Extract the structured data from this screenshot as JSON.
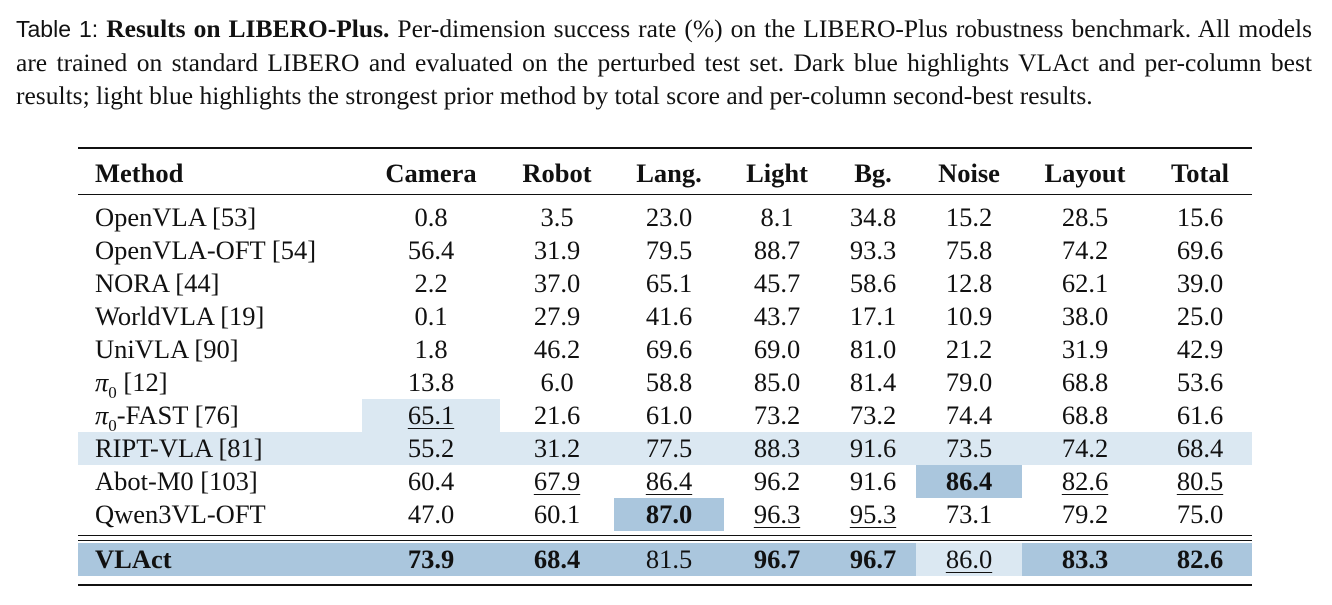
{
  "caption": {
    "prefix": "Table 1:",
    "title": "Results on LIBERO-Plus.",
    "text": "Per-dimension success rate (%) on the LIBERO-Plus robustness benchmark. All models are trained on standard LIBERO and evaluated on the perturbed test set. Dark blue highlights VLAct and per-column best results; light blue highlights the strongest prior method by total score and per-column second-best results."
  },
  "table": {
    "headers": [
      "Method",
      "Camera",
      "Robot",
      "Lang.",
      "Light",
      "Bg.",
      "Noise",
      "Layout",
      "Total"
    ],
    "rows": [
      {
        "method": "OpenVLA [53]",
        "values": [
          "0.8",
          "3.5",
          "23.0",
          "8.1",
          "34.8",
          "15.2",
          "28.5",
          "15.6"
        ]
      },
      {
        "method": "OpenVLA-OFT [54]",
        "values": [
          "56.4",
          "31.9",
          "79.5",
          "88.7",
          "93.3",
          "75.8",
          "74.2",
          "69.6"
        ]
      },
      {
        "method": "NORA [44]",
        "values": [
          "2.2",
          "37.0",
          "65.1",
          "45.7",
          "58.6",
          "12.8",
          "62.1",
          "39.0"
        ]
      },
      {
        "method": "WorldVLA [19]",
        "values": [
          "0.1",
          "27.9",
          "41.6",
          "43.7",
          "17.1",
          "10.9",
          "38.0",
          "25.0"
        ]
      },
      {
        "method": "UniVLA [90]",
        "values": [
          "1.8",
          "46.2",
          "69.6",
          "69.0",
          "81.0",
          "21.2",
          "31.9",
          "42.9"
        ]
      },
      {
        "method": "π0 [12]",
        "values": [
          "13.8",
          "6.0",
          "58.8",
          "85.0",
          "81.4",
          "79.0",
          "68.8",
          "53.6"
        ]
      },
      {
        "method": "π0-FAST [76]",
        "values": [
          "65.1",
          "21.6",
          "61.0",
          "73.2",
          "73.2",
          "74.4",
          "68.8",
          "61.6"
        ]
      },
      {
        "method": "RIPT-VLA [81]",
        "values": [
          "55.2",
          "31.2",
          "77.5",
          "88.3",
          "91.6",
          "73.5",
          "74.2",
          "68.4"
        ]
      },
      {
        "method": "Abot-M0 [103]",
        "values": [
          "60.4",
          "67.9",
          "86.4",
          "96.2",
          "91.6",
          "86.4",
          "82.6",
          "80.5"
        ]
      },
      {
        "method": "Qwen3VL-OFT",
        "values": [
          "47.0",
          "60.1",
          "87.0",
          "96.3",
          "95.3",
          "73.1",
          "79.2",
          "75.0"
        ]
      },
      {
        "method": "VLAct",
        "values": [
          "73.9",
          "68.4",
          "81.5",
          "96.7",
          "96.7",
          "86.0",
          "83.3",
          "82.6"
        ]
      }
    ]
  },
  "colors": {
    "light_highlight": "#dbe8f2",
    "dark_highlight": "#aac6dd"
  }
}
